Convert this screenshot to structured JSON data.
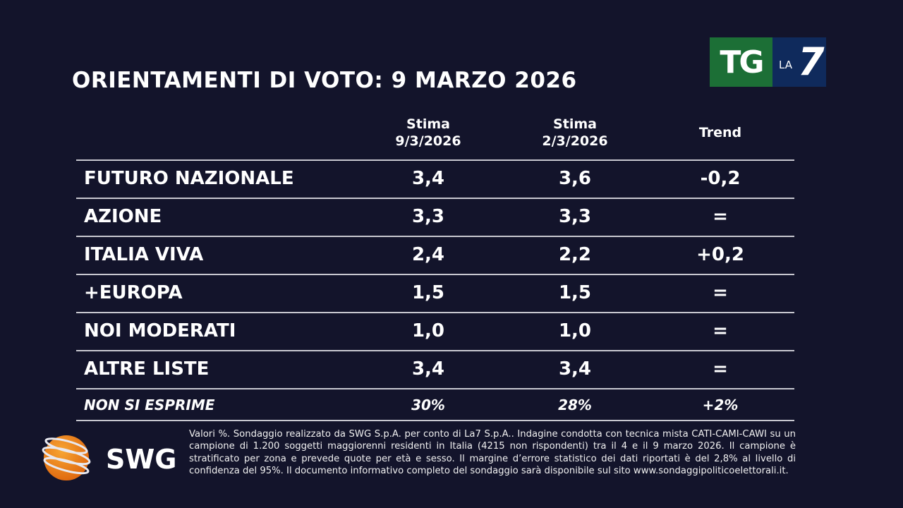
{
  "title": "ORIENTAMENTI DI VOTO: 9 MARZO 2026",
  "brand": {
    "tg_logo": "TG LA7",
    "swg_logo": "SWG",
    "colors": {
      "background": "#13142b",
      "tg_green": "#1c6f36",
      "la7_blue": "#0f2a5c",
      "swg_orange": "#f08a1c"
    }
  },
  "columns": [
    {
      "line1": "Stima",
      "line2": "9/3/2026"
    },
    {
      "line1": "Stima",
      "line2": "2/3/2026"
    },
    {
      "line1": "Trend",
      "line2": ""
    }
  ],
  "rows": [
    {
      "party": "FUTURO NAZIONALE",
      "current": "3,4",
      "previous": "3,6",
      "trend": "-0,2"
    },
    {
      "party": "AZIONE",
      "current": "3,3",
      "previous": "3,3",
      "trend": "="
    },
    {
      "party": "ITALIA VIVA",
      "current": "2,4",
      "previous": "2,2",
      "trend": "+0,2"
    },
    {
      "party": "+EUROPA",
      "current": "1,5",
      "previous": "1,5",
      "trend": "="
    },
    {
      "party": "NOI MODERATI",
      "current": "1,0",
      "previous": "1,0",
      "trend": "="
    },
    {
      "party": "ALTRE LISTE",
      "current": "3,4",
      "previous": "3,4",
      "trend": "="
    }
  ],
  "abstain": {
    "party": "NON SI ESPRIME",
    "current": "30%",
    "previous": "28%",
    "trend": "+2%"
  },
  "footnote": "Valori %. Sondaggio realizzato da SWG S.p.A. per conto di La7 S.p.A.. Indagine condotta con tecnica mista CATI-CAMI-CAWI su un campione di 1.200 soggetti maggiorenni residenti in Italia (4215 non rispondenti) tra il 4 e il 9 marzo 2026. Il campione è stratificato per zona e prevede quote per età e sesso. Il margine d’errore statistico dei dati riportati è del 2,8% al livello di confidenza del 95%. Il documento informativo completo del sondaggio sarà disponibile sul sito www.sondaggipoliticoelettorali.it."
}
